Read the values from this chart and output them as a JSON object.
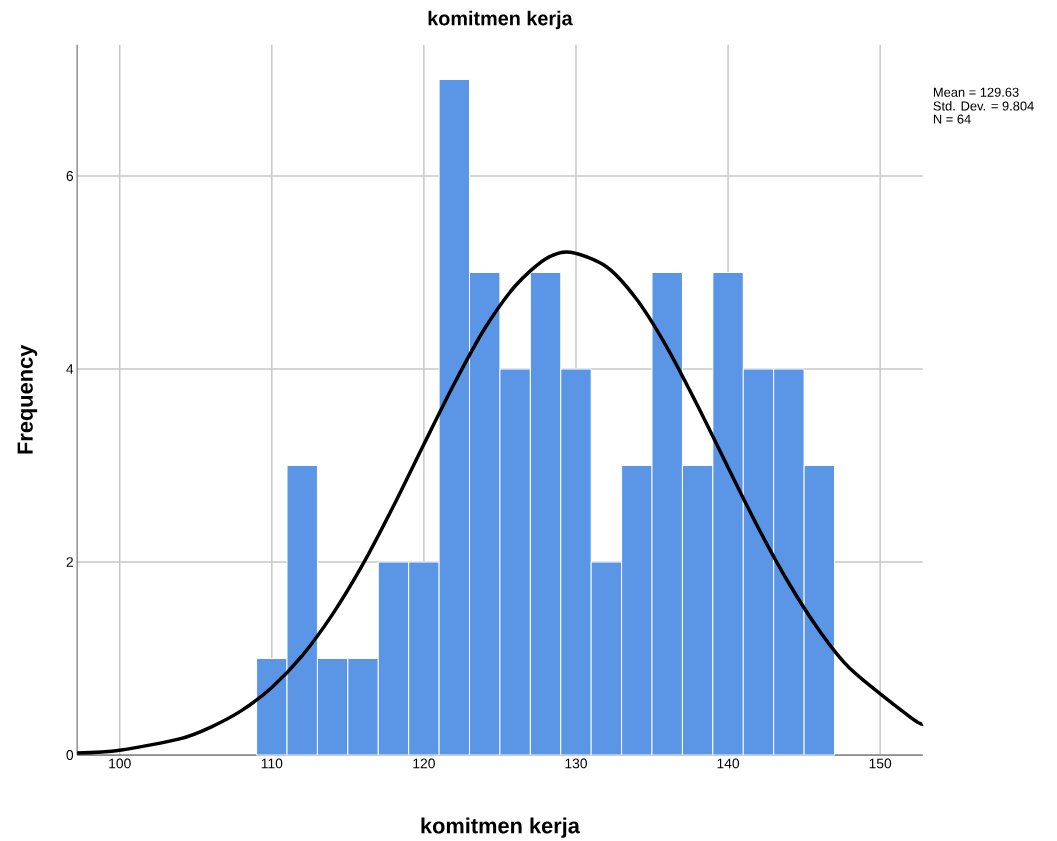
{
  "chart_data": {
    "type": "histogram",
    "title": "komitmen kerja",
    "xlabel": "komitmen kerja",
    "ylabel": "Frequency",
    "bins": [
      109,
      111,
      113,
      115,
      117,
      119,
      121,
      123,
      125,
      127,
      129,
      131,
      133,
      135,
      137,
      139,
      141,
      143,
      145,
      147
    ],
    "values": [
      1,
      3,
      1,
      1,
      2,
      2,
      7,
      5,
      4,
      5,
      4,
      2,
      3,
      5,
      3,
      5,
      4,
      4,
      3
    ],
    "color": "#5b95e5",
    "series": [
      {
        "type": "line",
        "color": "#000000",
        "x": [
          97.2,
          100,
          104,
          106,
          108,
          110,
          112,
          114,
          116,
          118,
          120,
          122,
          124,
          126,
          128,
          129.63,
          132,
          134,
          136,
          138,
          140,
          142,
          144,
          146,
          148,
          152,
          152.8
        ],
        "values": [
          0.02,
          0.05,
          0.17,
          0.29,
          0.46,
          0.7,
          1.03,
          1.46,
          1.98,
          2.58,
          3.22,
          3.85,
          4.42,
          4.86,
          5.14,
          5.21,
          5.06,
          4.72,
          4.22,
          3.62,
          2.98,
          2.35,
          1.78,
          1.29,
          0.9,
          0.39,
          0.32
        ]
      }
    ],
    "xlim": [
      97.2,
      152.8
    ],
    "ylim": [
      0,
      7.36
    ],
    "xticks": [
      100,
      110,
      120,
      130,
      140,
      150
    ],
    "yticks": [
      0,
      2,
      4,
      6
    ],
    "grid": true,
    "marker": "none",
    "line_style": "solid",
    "annotations": [
      "Mean = 129.63",
      "Std. Dev. = 9.804",
      "N = 64"
    ]
  }
}
